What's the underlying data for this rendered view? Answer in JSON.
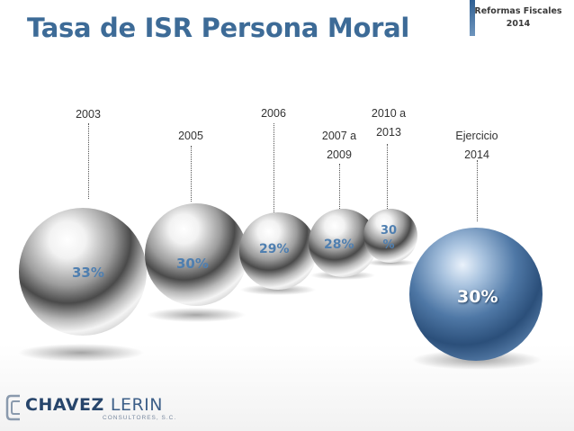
{
  "title": "Tasa de ISR Persona Moral",
  "badge": {
    "line1": "Reformas Fiscales",
    "line2": "2014"
  },
  "timeline": [
    {
      "year": "2003",
      "rate": "33%"
    },
    {
      "year": "2005",
      "rate": "30%"
    },
    {
      "year": "2006",
      "rate": "29%"
    },
    {
      "year": "2007 a\n2009",
      "rate": "28%"
    },
    {
      "year": "2010 a\n2013",
      "rate": "30\n%"
    }
  ],
  "current": {
    "year": "Ejercicio\n2014",
    "rate": "30%"
  },
  "logo": {
    "name_bold": "CHAVEZ",
    "name_light": "LERIN",
    "tagline": "CONSULTORES, S.C."
  }
}
